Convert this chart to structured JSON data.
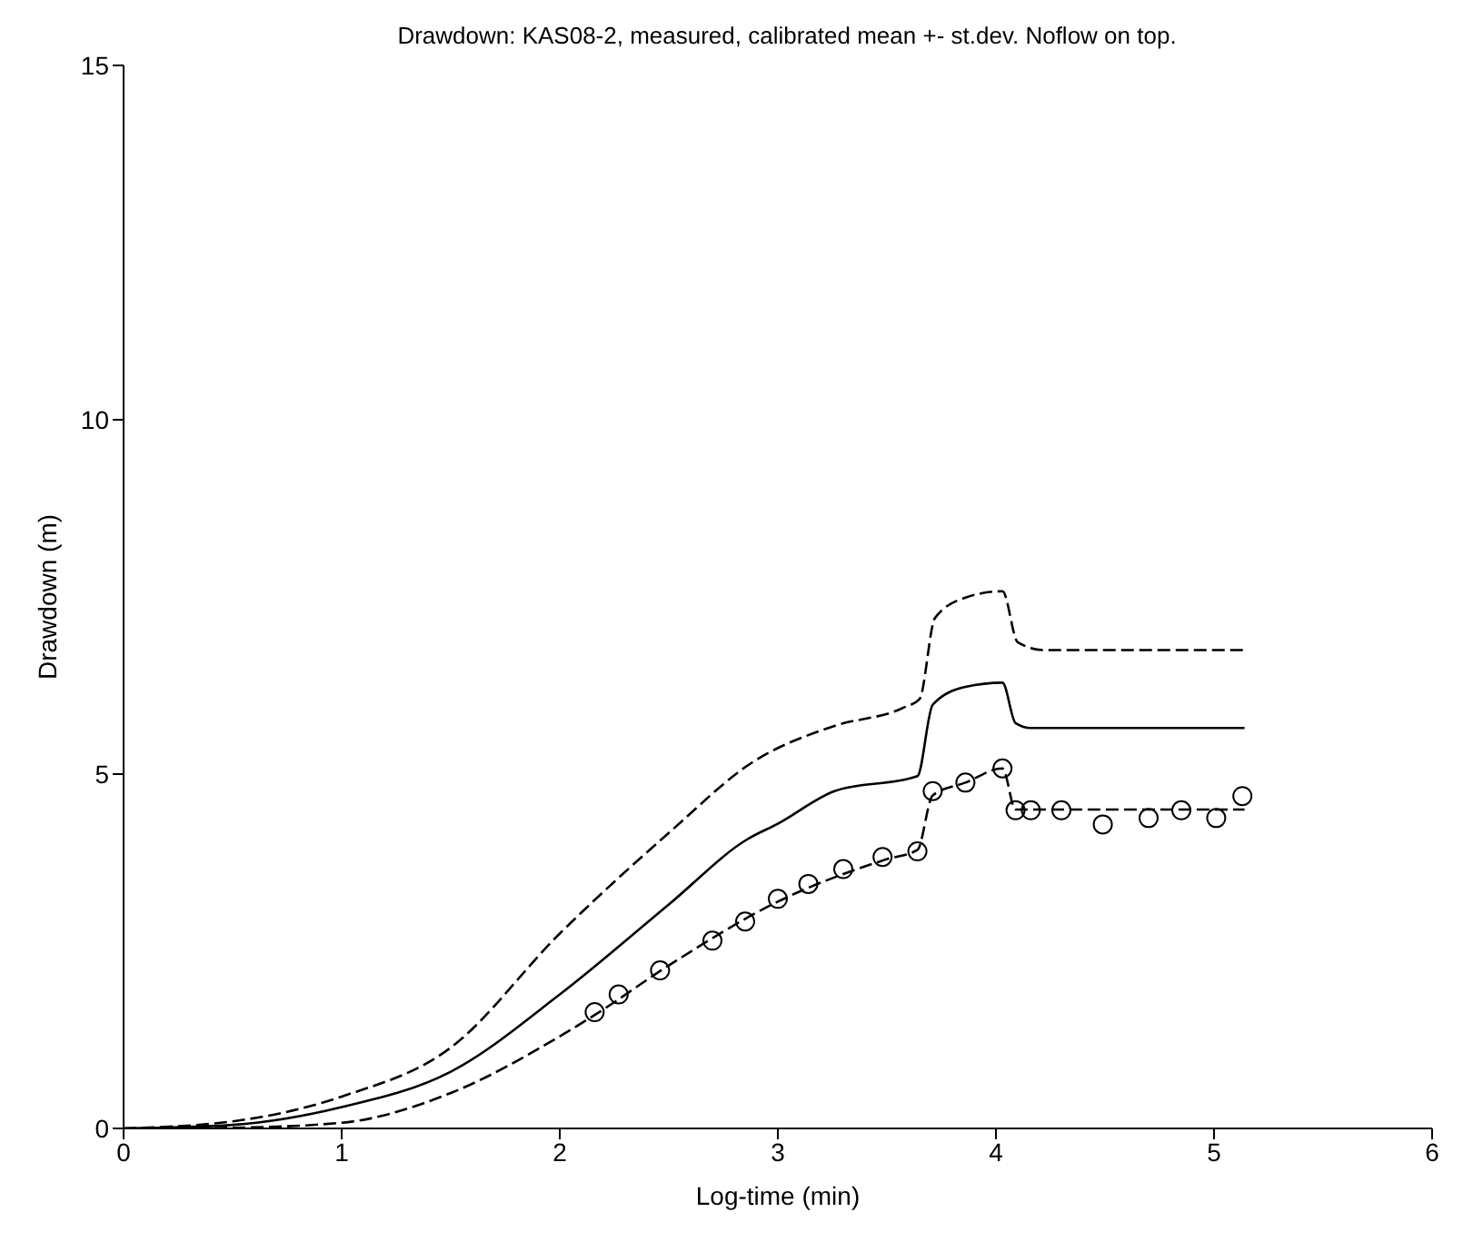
{
  "chart_data": {
    "type": "line",
    "title": "Drawdown: KAS08-2, measured, calibrated mean +- st.dev. Noflow on top.",
    "xlabel": "Log-time (min)",
    "ylabel": "Drawdown (m)",
    "xlim": [
      0,
      6
    ],
    "xticks": [
      0,
      1,
      2,
      3,
      4,
      5,
      6
    ],
    "ylim": [
      0,
      15
    ],
    "yticks": [
      0,
      5,
      10,
      15
    ],
    "grid": false,
    "series": [
      {
        "color": "#000000",
        "line_style": "dashed",
        "marker": "none",
        "x": [
          0,
          0.5,
          1,
          1.5,
          2,
          2.5,
          2.89,
          3.26,
          3.57,
          3.65,
          3.72,
          3.86,
          4.03,
          4.1,
          4.22,
          5.14
        ],
        "values": [
          0,
          0.1,
          0.45,
          1.14,
          2.75,
          4.17,
          5.18,
          5.68,
          5.93,
          6.06,
          7.2,
          7.49,
          7.58,
          6.86,
          6.75,
          6.75
        ]
      },
      {
        "color": "#000000",
        "line_style": "solid",
        "marker": "none",
        "x": [
          0,
          0.5,
          1,
          1.5,
          2,
          2.5,
          2.86,
          3.0,
          3.26,
          3.64,
          3.71,
          3.86,
          4.03,
          4.09,
          4.16,
          5.14
        ],
        "values": [
          0,
          0.05,
          0.3,
          0.8,
          1.89,
          3.16,
          4.08,
          4.3,
          4.76,
          4.97,
          5.98,
          6.23,
          6.29,
          5.72,
          5.65,
          5.65
        ]
      },
      {
        "color": "#000000",
        "line_style": "dashed",
        "marker": "none",
        "x": [
          0,
          0.5,
          1,
          1.5,
          2,
          2.16,
          2.5,
          3,
          3.5,
          3.64,
          3.71,
          3.86,
          4.03,
          4.09,
          4.16,
          5.14
        ],
        "values": [
          0,
          0.01,
          0.08,
          0.5,
          1.3,
          1.6,
          2.3,
          3.2,
          3.8,
          3.93,
          4.7,
          4.88,
          5.08,
          4.5,
          4.5,
          4.5
        ]
      },
      {
        "type": "scatter",
        "color": "#000000",
        "marker": "circle",
        "x": [
          2.16,
          2.27,
          2.46,
          2.7,
          2.85,
          3.0,
          3.14,
          3.3,
          3.48,
          3.64,
          3.71,
          3.86,
          4.03,
          4.09,
          4.16,
          4.3,
          4.49,
          4.7,
          4.85,
          5.01,
          5.13
        ],
        "values": [
          1.64,
          1.89,
          2.23,
          2.65,
          2.92,
          3.24,
          3.45,
          3.66,
          3.83,
          3.91,
          4.76,
          4.88,
          5.08,
          4.49,
          4.49,
          4.49,
          4.29,
          4.38,
          4.49,
          4.38,
          4.69
        ]
      }
    ]
  }
}
